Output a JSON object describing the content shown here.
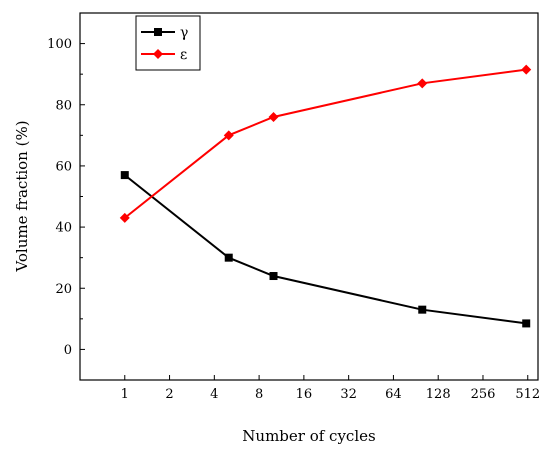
{
  "chart_data": {
    "type": "line",
    "title": "",
    "xlabel": "Number of cycles",
    "ylabel": "Volume fraction (%)",
    "x_scale": "log2",
    "x_ticks": [
      "1",
      "2",
      "4",
      "8",
      "16",
      "32",
      "64",
      "128",
      "256",
      "512"
    ],
    "x_tick_values": [
      1,
      2,
      4,
      8,
      16,
      32,
      64,
      128,
      256,
      512
    ],
    "xlim": [
      0.5,
      600
    ],
    "y_ticks": [
      "0",
      "20",
      "40",
      "60",
      "80",
      "100"
    ],
    "y_tick_values": [
      0,
      20,
      40,
      60,
      80,
      100
    ],
    "ylim": [
      -10,
      110
    ],
    "legend_position": "top-left",
    "series": [
      {
        "name": "γ",
        "color": "#000000",
        "marker": "square",
        "x": [
          1,
          5,
          10,
          100,
          500
        ],
        "y": [
          57,
          30,
          24,
          13,
          8.5
        ]
      },
      {
        "name": "ε",
        "color": "#ff0000",
        "marker": "diamond",
        "x": [
          1,
          5,
          10,
          100,
          500
        ],
        "y": [
          43,
          70,
          76,
          87,
          91.5
        ]
      }
    ]
  }
}
